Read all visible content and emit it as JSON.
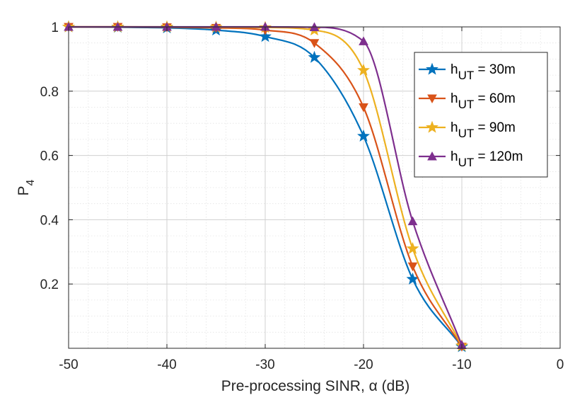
{
  "chart_data": {
    "type": "line",
    "title": "",
    "xlabel": "Pre-processing SINR, α (dB)",
    "ylabel": "P",
    "ylabel_sub": "4",
    "xlim": [
      -50,
      0
    ],
    "ylim": [
      0,
      1
    ],
    "xticks": [
      -50,
      -40,
      -30,
      -20,
      -10,
      0
    ],
    "xtick_labels": [
      "-50",
      "-40",
      "-30",
      "-20",
      "-10",
      "0"
    ],
    "yticks": [
      0.2,
      0.4,
      0.6,
      0.8,
      1
    ],
    "ytick_labels": [
      "0.2",
      "0.4",
      "0.6",
      "0.8",
      "1"
    ],
    "grid": true,
    "minor_grid": true,
    "legend_position": "top-right",
    "series": [
      {
        "name": "h_UT = 30m",
        "legend_main": "h",
        "legend_sub": "UT",
        "legend_rest": " = 30m",
        "color": "#0072BD",
        "marker": "star",
        "x": [
          -50,
          -45,
          -40,
          -35,
          -30,
          -25,
          -20,
          -15,
          -10
        ],
        "y": [
          1.0,
          0.999,
          0.997,
          0.99,
          0.97,
          0.905,
          0.66,
          0.215,
          0.005
        ]
      },
      {
        "name": "h_UT = 60m",
        "legend_main": "h",
        "legend_sub": "UT",
        "legend_rest": " = 60m",
        "color": "#D95319",
        "marker": "triangle-down",
        "x": [
          -50,
          -45,
          -40,
          -35,
          -30,
          -25,
          -20,
          -15,
          -10
        ],
        "y": [
          1.0,
          1.0,
          0.999,
          0.997,
          0.99,
          0.95,
          0.75,
          0.255,
          0.005
        ]
      },
      {
        "name": "h_UT = 90m",
        "legend_main": "h",
        "legend_sub": "UT",
        "legend_rest": " = 90m",
        "color": "#EDB120",
        "marker": "star",
        "x": [
          -50,
          -45,
          -40,
          -35,
          -30,
          -25,
          -20,
          -15,
          -10
        ],
        "y": [
          1.0,
          1.0,
          1.0,
          0.999,
          0.998,
          0.99,
          0.865,
          0.31,
          0.008
        ]
      },
      {
        "name": "h_UT = 120m",
        "legend_main": "h",
        "legend_sub": "UT",
        "legend_rest": " = 120m",
        "color": "#7E2F8E",
        "marker": "triangle-up",
        "x": [
          -50,
          -45,
          -40,
          -35,
          -30,
          -25,
          -20,
          -15,
          -10
        ],
        "y": [
          1.0,
          1.0,
          1.0,
          1.0,
          1.0,
          0.999,
          0.955,
          0.395,
          0.01
        ]
      }
    ]
  }
}
